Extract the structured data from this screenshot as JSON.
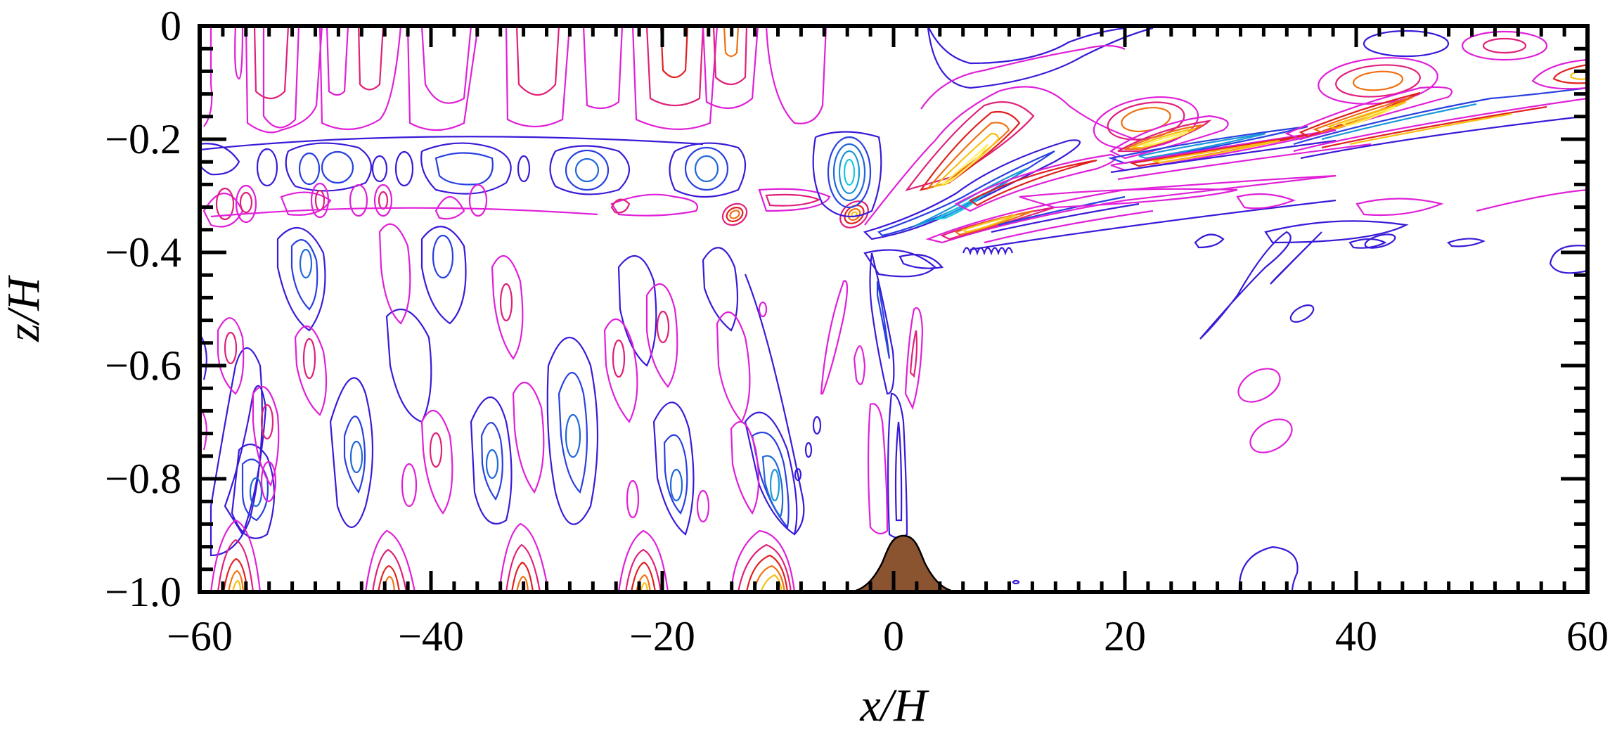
{
  "chart_data": {
    "type": "contour",
    "title": "",
    "xlabel": "x/H",
    "ylabel": "z/H",
    "xlim": [
      -60,
      60
    ],
    "ylim": [
      -1.0,
      0
    ],
    "x_ticks": [
      -60,
      -40,
      -20,
      0,
      20,
      40,
      60
    ],
    "x_tick_labels": [
      "−60",
      "−40",
      "−20",
      "0",
      "20",
      "40",
      "60"
    ],
    "x_minor_step": 2,
    "y_ticks": [
      0,
      -0.2,
      -0.4,
      -0.6,
      -0.8,
      -1.0
    ],
    "y_tick_labels": [
      "0",
      "−0.2",
      "−0.4",
      "−0.6",
      "−0.8",
      "−1.0"
    ],
    "y_minor_step": 0.04,
    "grid": false,
    "legend": null,
    "topography": {
      "shape": "gaussian hill",
      "center_x": 0,
      "peak_z": -0.9,
      "base_z": -1.0,
      "half_width_x": 2,
      "color": "#8b5430"
    },
    "contour_palette": {
      "negative": [
        "#3a1ad8",
        "#2840e0",
        "#1f68d8",
        "#1a98d8",
        "#18c8e0"
      ],
      "positive": [
        "#e020d8",
        "#e0207a",
        "#e02020",
        "#f07010",
        "#f8c010",
        "#fff060"
      ]
    },
    "features": [
      {
        "name": "surface-cells",
        "x_range": [
          -60,
          -5
        ],
        "z_range": [
          -0.18,
          0
        ],
        "sign": "positive",
        "description": "vertical lobes from top boundary"
      },
      {
        "name": "pycnocline-band",
        "x_range": [
          -60,
          0
        ],
        "z_range": [
          -0.4,
          -0.2
        ],
        "sign": "mixed",
        "description": "alternating blue/magenta cells near z=-0.3"
      },
      {
        "name": "lower-layer-beams",
        "x_range": [
          -60,
          -8
        ],
        "z_range": [
          -1.0,
          -0.4
        ],
        "sign": "mixed",
        "description": "tilted vertical wave beams"
      },
      {
        "name": "bottom-hotspots",
        "x": [
          -57,
          -45,
          -33,
          -21,
          -10
        ],
        "z": -1.0,
        "sign": "positive"
      },
      {
        "name": "lee-wave-beam",
        "x_range": [
          -4,
          60
        ],
        "z_range": [
          -0.38,
          -0.08
        ],
        "sign": "mixed",
        "description": "intense rising beam with yellow/cyan cores"
      },
      {
        "name": "hill-plume",
        "x_range": [
          -2,
          2
        ],
        "z_range": [
          -0.9,
          -0.4
        ],
        "sign": "mixed"
      }
    ]
  }
}
